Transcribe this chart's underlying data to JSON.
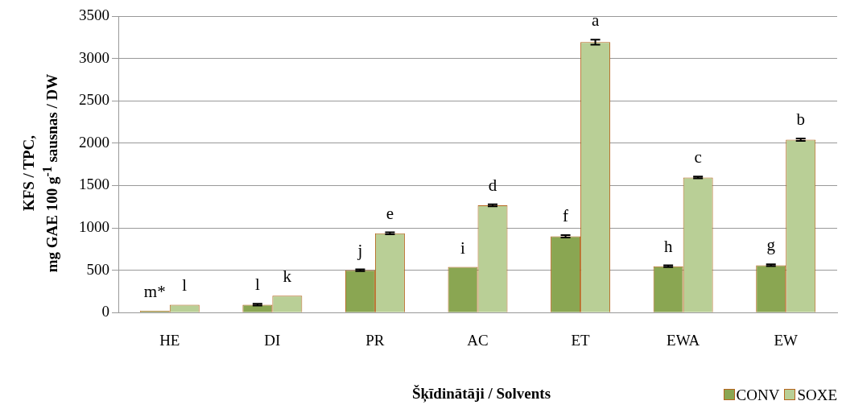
{
  "chart_data": {
    "type": "bar",
    "categories": [
      "HE",
      "DI",
      "PR",
      "AC",
      "ET",
      "EWA",
      "EW"
    ],
    "xlabel": "Šķīdinātāji / Solvents",
    "ylabel": "KFS / TPC,\nmg GAE 100 g$^{-1}$ sausnas / DW",
    "ylim": [
      0,
      3500
    ],
    "yticks": [
      0,
      500,
      1000,
      1500,
      2000,
      2500,
      3000,
      3500
    ],
    "grid": "y",
    "legend": "bottom right",
    "series": [
      {
        "name": "CONV",
        "color": "#8aa652",
        "values": [
          22,
          93,
          500,
          538,
          900,
          547,
          559
        ],
        "errors": [
          null,
          10,
          10,
          null,
          15,
          10,
          10
        ],
        "value_labels": [
          "m*",
          "l",
          "j",
          "i",
          "f",
          "h",
          "g"
        ]
      },
      {
        "name": "SOXE",
        "color": "#b9cf96",
        "values": [
          93,
          200,
          935,
          1266,
          3193,
          1595,
          2041
        ],
        "errors": [
          null,
          null,
          12,
          12,
          30,
          10,
          15
        ],
        "value_labels": [
          "l",
          "k",
          "e",
          "d",
          "a",
          "c",
          "b"
        ]
      }
    ]
  }
}
